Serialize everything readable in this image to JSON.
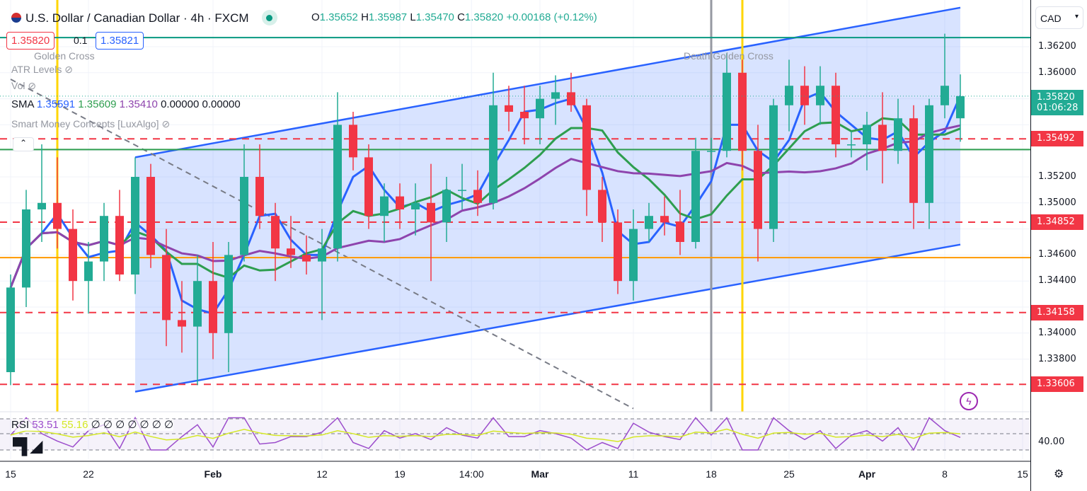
{
  "header": {
    "symbol": "U.S. Dollar / Canadian Dollar · 4h · FXCM",
    "o_label": "O",
    "o": "1.35652",
    "h_label": "H",
    "h": "1.35987",
    "l_label": "L",
    "l": "1.35470",
    "c_label": "C",
    "c": "1.35820",
    "change": "+0.00168 (+0.12%)"
  },
  "order": {
    "sell": "1.35820",
    "spread": "0.1",
    "buy": "1.35821"
  },
  "indicators": {
    "golden_cross": "Golden Cross",
    "atr": "ATR Levels",
    "vol": "Vol",
    "sma_label": "SMA",
    "sma": [
      "1.35591",
      "1.35609",
      "1.35410",
      "0.00000",
      "0.00000"
    ],
    "smc": "Smart Money Concepts [LuxAlgo]",
    "death_cross": "Death Golden Cross",
    "rsi_label": "RSI",
    "rsi": "53.51",
    "rsi_ma": "55.16",
    "rsi_extra": "∅ ∅ ∅ ∅ ∅ ∅ ∅"
  },
  "axis": {
    "currency": "CAD",
    "countdown": "01:06:28",
    "rsi_tick": "40.00"
  },
  "colors": {
    "up": "#22ab94",
    "down": "#f23645",
    "sma_fast": "#2962ff",
    "sma_mid": "#2e9e4f",
    "sma_slow": "#8e44ad",
    "channel": "#2962ff",
    "channel_fill": "#2962ff22",
    "support": "#f23645",
    "orange": "#ff9800",
    "yellow": "#ffd600",
    "green_line": "#089981"
  },
  "chart_data": {
    "type": "candlestick",
    "title": "U.S. Dollar / Canadian Dollar · 4h · FXCM",
    "ylim": [
      1.3345,
      1.3635
    ],
    "yticks": [
      1.362,
      1.36,
      1.358,
      1.356,
      1.354,
      1.352,
      1.35,
      1.348,
      1.346,
      1.344,
      1.342,
      1.34,
      1.338
    ],
    "xticks": [
      {
        "label": "15",
        "i": 0
      },
      {
        "label": "22",
        "i": 5
      },
      {
        "label": "Feb",
        "i": 13
      },
      {
        "label": "12",
        "i": 20
      },
      {
        "label": "19",
        "i": 25
      },
      {
        "label": "14:00",
        "i": 29.6
      },
      {
        "label": "Mar",
        "i": 34
      },
      {
        "label": "11",
        "i": 40
      },
      {
        "label": "18",
        "i": 45
      },
      {
        "label": "25",
        "i": 50
      },
      {
        "label": "Apr",
        "i": 55
      },
      {
        "label": "8",
        "i": 60
      },
      {
        "label": "15",
        "i": 65
      }
    ],
    "last_price": "1.35820",
    "levels_dashed": [
      "1.35492",
      "1.34852",
      "1.34158",
      "1.33606"
    ],
    "levels_solid": [
      {
        "p": 1.3627,
        "color": "green_line"
      },
      {
        "p": 1.3541,
        "color": "sma_mid"
      },
      {
        "p": 1.3458,
        "color": "orange"
      }
    ],
    "channel": {
      "upper": [
        [
          "Jan 25",
          1.3535
        ],
        [
          "Apr 9",
          1.365
        ]
      ],
      "lower": [
        [
          "Jan 25",
          1.3355
        ],
        [
          "Apr 9",
          1.3468
        ]
      ]
    },
    "trendline_dashed": [
      [
        "Jan 15",
        1.3595
      ],
      [
        "Mar 11",
        1.3342
      ]
    ],
    "vertical_lines": [
      {
        "date": "Jan 18",
        "color": "yellow"
      },
      {
        "date": "Mar 18",
        "color": "#9598a1"
      },
      {
        "date": "Mar 20",
        "color": "yellow"
      }
    ],
    "candles": [
      [
        "Jan 15",
        1.337,
        1.3445,
        1.336,
        1.3435
      ],
      [
        "Jan 16",
        1.3435,
        1.351,
        1.342,
        1.3495
      ],
      [
        "Jan 17",
        1.3495,
        1.3545,
        1.347,
        1.35
      ],
      [
        "Jan 18",
        1.35,
        1.3535,
        1.3465,
        1.348
      ],
      [
        "Jan 19",
        1.348,
        1.3495,
        1.3425,
        1.344
      ],
      [
        "Jan 22",
        1.344,
        1.347,
        1.3415,
        1.3455
      ],
      [
        "Jan 23",
        1.3455,
        1.35,
        1.344,
        1.349
      ],
      [
        "Jan 24",
        1.349,
        1.351,
        1.344,
        1.3445
      ],
      [
        "Jan 25",
        1.3445,
        1.3535,
        1.343,
        1.352
      ],
      [
        "Jan 26",
        1.352,
        1.353,
        1.345,
        1.346
      ],
      [
        "Jan 29",
        1.346,
        1.348,
        1.339,
        1.341
      ],
      [
        "Jan 30",
        1.341,
        1.344,
        1.3385,
        1.3405
      ],
      [
        "Jan 31",
        1.3405,
        1.346,
        1.336,
        1.344
      ],
      [
        "Feb 1",
        1.344,
        1.347,
        1.338,
        1.34
      ],
      [
        "Feb 2",
        1.34,
        1.347,
        1.337,
        1.346
      ],
      [
        "Feb 5",
        1.346,
        1.3545,
        1.3455,
        1.352
      ],
      [
        "Feb 6",
        1.352,
        1.3545,
        1.348,
        1.349
      ],
      [
        "Feb 7",
        1.349,
        1.35,
        1.344,
        1.3465
      ],
      [
        "Feb 8",
        1.3465,
        1.349,
        1.345,
        1.346
      ],
      [
        "Feb 9",
        1.346,
        1.3475,
        1.3445,
        1.3455
      ],
      [
        "Feb 12",
        1.3455,
        1.348,
        1.341,
        1.3465
      ],
      [
        "Feb 13",
        1.3465,
        1.3585,
        1.3455,
        1.356
      ],
      [
        "Feb 14",
        1.356,
        1.357,
        1.3525,
        1.3535
      ],
      [
        "Feb 15",
        1.3535,
        1.3545,
        1.348,
        1.349
      ],
      [
        "Feb 16",
        1.349,
        1.3515,
        1.347,
        1.3505
      ],
      [
        "Feb 19",
        1.3505,
        1.3515,
        1.348,
        1.3495
      ],
      [
        "Feb 20",
        1.3495,
        1.3515,
        1.3475,
        1.35
      ],
      [
        "Feb 21",
        1.35,
        1.353,
        1.344,
        1.3485
      ],
      [
        "Feb 22",
        1.3485,
        1.352,
        1.347,
        1.351
      ],
      [
        "Feb 23",
        1.351,
        1.353,
        1.3495,
        1.351
      ],
      [
        "Feb 26",
        1.351,
        1.3525,
        1.349,
        1.35
      ],
      [
        "Feb 27",
        1.35,
        1.36,
        1.3495,
        1.3575
      ],
      [
        "Feb 28",
        1.3575,
        1.359,
        1.3555,
        1.357
      ],
      [
        "Feb 29",
        1.357,
        1.359,
        1.3545,
        1.3565
      ],
      [
        "Mar 1",
        1.3565,
        1.359,
        1.3545,
        1.358
      ],
      [
        "Mar 4",
        1.358,
        1.3598,
        1.356,
        1.3585
      ],
      [
        "Mar 5",
        1.3585,
        1.36,
        1.357,
        1.3575
      ],
      [
        "Mar 6",
        1.3575,
        1.358,
        1.349,
        1.351
      ],
      [
        "Mar 7",
        1.351,
        1.352,
        1.347,
        1.3485
      ],
      [
        "Mar 8",
        1.3485,
        1.3495,
        1.343,
        1.344
      ],
      [
        "Mar 11",
        1.344,
        1.3495,
        1.3425,
        1.348
      ],
      [
        "Mar 12",
        1.348,
        1.35,
        1.347,
        1.349
      ],
      [
        "Mar 13",
        1.349,
        1.3505,
        1.3475,
        1.3485
      ],
      [
        "Mar 14",
        1.3485,
        1.351,
        1.346,
        1.347
      ],
      [
        "Mar 15",
        1.347,
        1.355,
        1.3465,
        1.354
      ],
      [
        "Mar 18",
        1.354,
        1.355,
        1.3525,
        1.354
      ],
      [
        "Mar 19",
        1.354,
        1.3615,
        1.3535,
        1.36
      ],
      [
        "Mar 20",
        1.36,
        1.361,
        1.3525,
        1.354
      ],
      [
        "Mar 21",
        1.354,
        1.356,
        1.3455,
        1.348
      ],
      [
        "Mar 22",
        1.348,
        1.358,
        1.347,
        1.3575
      ],
      [
        "Mar 25",
        1.3575,
        1.361,
        1.3555,
        1.359
      ],
      [
        "Mar 26",
        1.359,
        1.3605,
        1.356,
        1.3575
      ],
      [
        "Mar 27",
        1.3575,
        1.3605,
        1.356,
        1.359
      ],
      [
        "Mar 28",
        1.359,
        1.36,
        1.3535,
        1.3545
      ],
      [
        "Mar 29",
        1.3545,
        1.3555,
        1.3535,
        1.3545
      ],
      [
        "Apr 1",
        1.3545,
        1.357,
        1.3525,
        1.356
      ],
      [
        "Apr 2",
        1.356,
        1.3585,
        1.3515,
        1.354
      ],
      [
        "Apr 3",
        1.354,
        1.358,
        1.353,
        1.3565
      ],
      [
        "Apr 4",
        1.3565,
        1.3575,
        1.348,
        1.35
      ],
      [
        "Apr 5",
        1.35,
        1.358,
        1.348,
        1.3575
      ],
      [
        "Apr 8",
        1.3575,
        1.363,
        1.3565,
        1.359
      ],
      [
        "Apr 9",
        1.3565,
        1.35987,
        1.3547,
        1.3582
      ]
    ]
  }
}
